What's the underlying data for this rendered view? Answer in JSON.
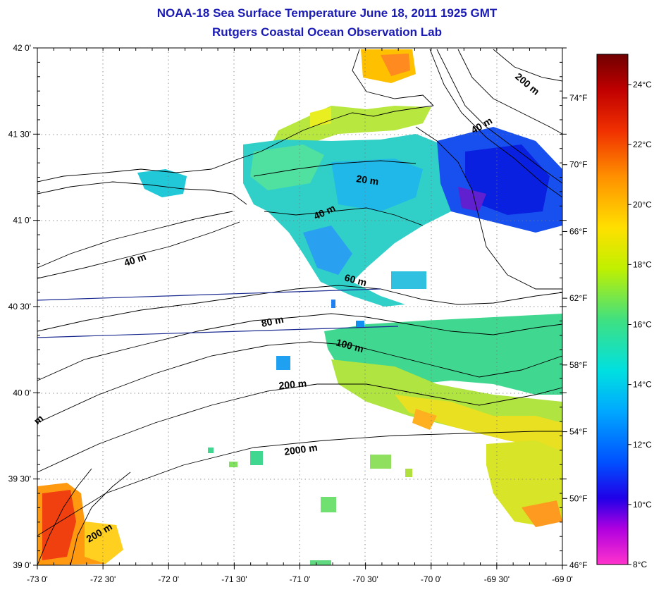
{
  "title": "NOAA-18 Sea Surface Temperature June 18, 2011 1925 GMT",
  "subtitle": "Rutgers Coastal Ocean Observation Lab",
  "axes": {
    "lon_ticks": [
      "-73 0'",
      "-72 30'",
      "-72 0'",
      "-71 30'",
      "-71 0'",
      "-70 30'",
      "-70 0'",
      "-69 30'",
      "-69 0'"
    ],
    "lat_ticks": [
      "42 0'",
      "41 30'",
      "41 0'",
      "40 30'",
      "40 0'",
      "39 30'",
      "39 0'"
    ],
    "lon_range": [
      -73,
      -69
    ],
    "lat_range": [
      39,
      42
    ],
    "grid": "dotted"
  },
  "contour_labels": [
    "200 m",
    "40 m",
    "20 m",
    "40 m",
    "40 m",
    "60 m",
    "80 m",
    "100 m",
    "200 m",
    "m",
    "2000 m",
    "200 m"
  ],
  "colorbar": {
    "celsius_ticks": [
      "24°C",
      "22°C",
      "20°C",
      "18°C",
      "16°C",
      "14°C",
      "12°C",
      "10°C",
      "8°C"
    ],
    "fahrenheit_ticks": [
      "74°F",
      "70°F",
      "66°F",
      "62°F",
      "58°F",
      "54°F",
      "50°F",
      "46°F"
    ],
    "range_c": [
      8,
      25
    ],
    "colors": [
      "#ff33cc",
      "#8000c0",
      "#0000e0",
      "#0080ff",
      "#00e0e0",
      "#40e080",
      "#c0f000",
      "#ffe000",
      "#ff8000",
      "#e02000",
      "#800000"
    ]
  },
  "colors": {
    "title": "#1a1ab4",
    "coast": "#000000",
    "track_line": "#1a2a90"
  }
}
